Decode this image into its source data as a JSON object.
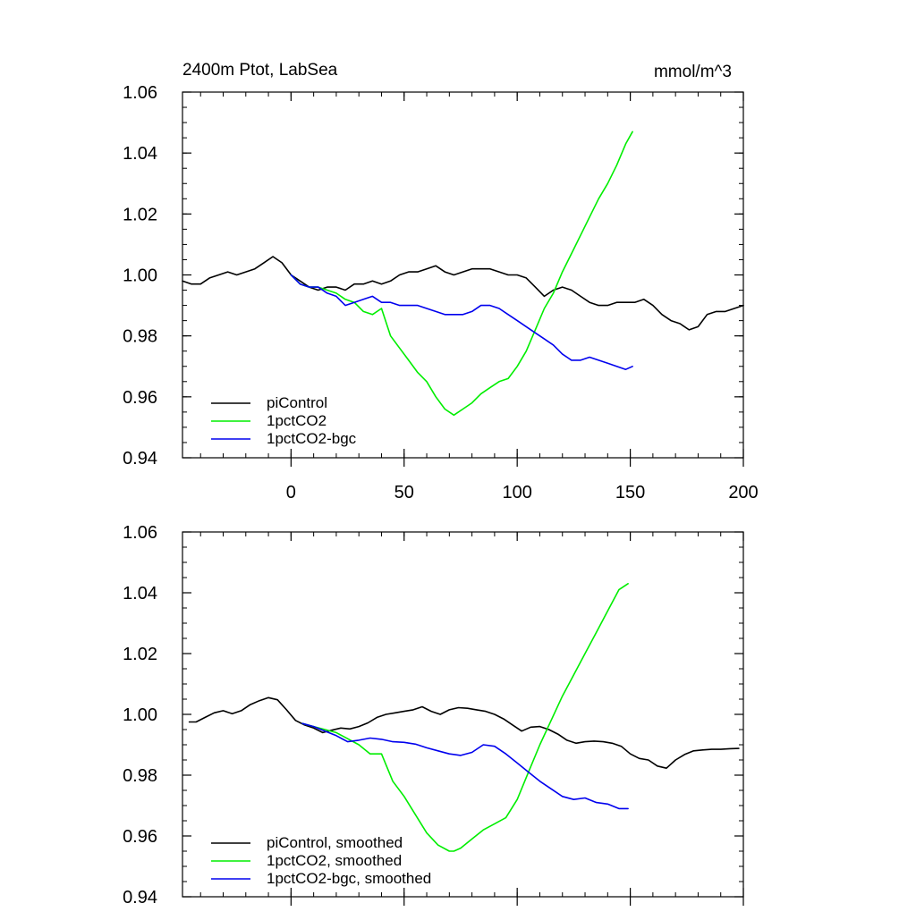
{
  "header": {
    "title": "2400m Ptot, LabSea",
    "units": "mmol/m^3"
  },
  "colors": {
    "piControl": "#000000",
    "1pctCO2": "#00ee00",
    "1pctCO2-bgc": "#0000ee"
  },
  "chart_data": [
    {
      "type": "line",
      "title": "2400m Ptot, LabSea",
      "units": "mmol/m^3",
      "xlim": [
        -48,
        200
      ],
      "ylim": [
        0.94,
        1.06
      ],
      "xticks": [
        0,
        50,
        100,
        150,
        200
      ],
      "xtick_labels": [
        "0",
        "50",
        "100",
        "150",
        "200"
      ],
      "yticks": [
        0.94,
        0.96,
        0.98,
        1.0,
        1.02,
        1.04,
        1.06
      ],
      "ytick_labels": [
        "0.94",
        "0.96",
        "0.98",
        "1.00",
        "1.02",
        "1.04",
        "1.06"
      ],
      "legend_position": "bottom-left",
      "grid": false,
      "series": [
        {
          "name": "piControl",
          "color": "#000000",
          "x": [
            -48,
            -44,
            -40,
            -36,
            -32,
            -28,
            -24,
            -20,
            -16,
            -12,
            -8,
            -4,
            0,
            4,
            8,
            12,
            16,
            20,
            24,
            28,
            32,
            36,
            40,
            44,
            48,
            52,
            56,
            60,
            64,
            68,
            72,
            76,
            80,
            84,
            88,
            92,
            96,
            100,
            104,
            108,
            112,
            116,
            120,
            124,
            128,
            132,
            136,
            140,
            144,
            148,
            152,
            156,
            160,
            164,
            168,
            172,
            176,
            180,
            184,
            188,
            192,
            196,
            200
          ],
          "y": [
            0.998,
            0.997,
            0.997,
            0.999,
            1.0,
            1.001,
            1.0,
            1.001,
            1.002,
            1.004,
            1.006,
            1.004,
            1.0,
            0.998,
            0.996,
            0.995,
            0.996,
            0.996,
            0.995,
            0.997,
            0.997,
            0.998,
            0.997,
            0.998,
            1.0,
            1.001,
            1.001,
            1.002,
            1.003,
            1.001,
            1.0,
            1.001,
            1.002,
            1.002,
            1.002,
            1.001,
            1.0,
            1.0,
            0.999,
            0.996,
            0.993,
            0.995,
            0.996,
            0.995,
            0.993,
            0.991,
            0.99,
            0.99,
            0.991,
            0.991,
            0.991,
            0.992,
            0.99,
            0.987,
            0.985,
            0.984,
            0.982,
            0.983,
            0.987,
            0.988,
            0.988,
            0.989,
            0.99
          ]
        },
        {
          "name": "1pctCO2",
          "color": "#00ee00",
          "x": [
            0,
            4,
            8,
            12,
            16,
            20,
            24,
            28,
            32,
            36,
            40,
            44,
            48,
            52,
            56,
            60,
            64,
            68,
            72,
            76,
            80,
            84,
            88,
            92,
            96,
            100,
            104,
            108,
            112,
            116,
            120,
            124,
            128,
            132,
            136,
            140,
            144,
            148,
            151
          ],
          "y": [
            1.0,
            0.997,
            0.996,
            0.996,
            0.995,
            0.994,
            0.992,
            0.991,
            0.988,
            0.987,
            0.989,
            0.98,
            0.976,
            0.972,
            0.968,
            0.965,
            0.96,
            0.956,
            0.954,
            0.956,
            0.958,
            0.961,
            0.963,
            0.965,
            0.966,
            0.97,
            0.975,
            0.982,
            0.989,
            0.994,
            1.001,
            1.007,
            1.013,
            1.019,
            1.025,
            1.03,
            1.036,
            1.043,
            1.047
          ]
        },
        {
          "name": "1pctCO2-bgc",
          "color": "#0000ee",
          "x": [
            0,
            4,
            8,
            12,
            16,
            20,
            24,
            28,
            32,
            36,
            40,
            44,
            48,
            52,
            56,
            60,
            64,
            68,
            72,
            76,
            80,
            84,
            88,
            92,
            96,
            100,
            104,
            108,
            112,
            116,
            120,
            124,
            128,
            132,
            136,
            140,
            144,
            148,
            151
          ],
          "y": [
            1.0,
            0.997,
            0.996,
            0.996,
            0.994,
            0.993,
            0.99,
            0.991,
            0.992,
            0.993,
            0.991,
            0.991,
            0.99,
            0.99,
            0.99,
            0.989,
            0.988,
            0.987,
            0.987,
            0.987,
            0.988,
            0.99,
            0.99,
            0.989,
            0.987,
            0.985,
            0.983,
            0.981,
            0.979,
            0.977,
            0.974,
            0.972,
            0.972,
            0.973,
            0.972,
            0.971,
            0.97,
            0.969,
            0.97
          ]
        }
      ]
    },
    {
      "type": "line",
      "xlim": [
        -48,
        200
      ],
      "ylim": [
        0.94,
        1.06
      ],
      "xticks": [
        0,
        50,
        100,
        150,
        200
      ],
      "xtick_labels": [],
      "yticks": [
        0.94,
        0.96,
        0.98,
        1.0,
        1.02,
        1.04,
        1.06
      ],
      "ytick_labels": [
        "0.94",
        "0.96",
        "0.98",
        "1.00",
        "1.02",
        "1.04",
        "1.06"
      ],
      "legend_position": "bottom-left",
      "grid": false,
      "series": [
        {
          "name": "piControl, smoothed",
          "color": "#000000",
          "x": [
            -45,
            -42,
            -38,
            -34,
            -30,
            -26,
            -22,
            -18,
            -14,
            -10,
            -6,
            -2,
            2,
            6,
            10,
            14,
            18,
            22,
            26,
            30,
            34,
            38,
            42,
            46,
            50,
            54,
            58,
            62,
            66,
            70,
            74,
            78,
            82,
            86,
            90,
            94,
            98,
            102,
            106,
            110,
            114,
            118,
            122,
            126,
            130,
            134,
            138,
            142,
            146,
            150,
            154,
            158,
            162,
            166,
            170,
            174,
            178,
            182,
            186,
            190,
            194,
            198
          ],
          "y": [
            0.9975,
            0.9975,
            0.999,
            1.0005,
            1.0012,
            1.0002,
            1.0012,
            1.0032,
            1.0045,
            1.0055,
            1.0048,
            1.0015,
            0.998,
            0.9965,
            0.9955,
            0.994,
            0.9948,
            0.9955,
            0.9952,
            0.996,
            0.9972,
            0.999,
            1.0,
            1.0005,
            1.001,
            1.0015,
            1.0025,
            1.001,
            1.0,
            1.0015,
            1.0022,
            1.002,
            1.0015,
            1.001,
            1.0,
            0.9985,
            0.9965,
            0.9945,
            0.9958,
            0.996,
            0.995,
            0.9935,
            0.9915,
            0.9905,
            0.991,
            0.9912,
            0.991,
            0.9905,
            0.9895,
            0.987,
            0.9855,
            0.985,
            0.983,
            0.9823,
            0.985,
            0.9868,
            0.988,
            0.9883,
            0.9885,
            0.9885,
            0.9887,
            0.9888
          ]
        },
        {
          "name": "1pctCO2, smoothed",
          "color": "#00ee00",
          "x": [
            5,
            10,
            15,
            20,
            25,
            30,
            35,
            40,
            45,
            50,
            55,
            60,
            65,
            70,
            72,
            75,
            80,
            85,
            90,
            95,
            100,
            105,
            110,
            115,
            120,
            125,
            130,
            135,
            140,
            145,
            149
          ],
          "y": [
            0.997,
            0.996,
            0.995,
            0.994,
            0.992,
            0.99,
            0.987,
            0.987,
            0.978,
            0.973,
            0.967,
            0.961,
            0.957,
            0.955,
            0.955,
            0.956,
            0.959,
            0.962,
            0.964,
            0.966,
            0.972,
            0.981,
            0.99,
            0.998,
            1.006,
            1.013,
            1.02,
            1.027,
            1.034,
            1.041,
            1.043
          ]
        },
        {
          "name": "1pctCO2-bgc, smoothed",
          "color": "#0000ee",
          "x": [
            5,
            10,
            15,
            20,
            25,
            30,
            35,
            40,
            45,
            50,
            55,
            60,
            65,
            70,
            75,
            80,
            85,
            90,
            95,
            100,
            105,
            110,
            115,
            120,
            125,
            130,
            135,
            140,
            145,
            149
          ],
          "y": [
            0.997,
            0.996,
            0.9945,
            0.993,
            0.991,
            0.9915,
            0.9922,
            0.9918,
            0.991,
            0.9908,
            0.9902,
            0.989,
            0.988,
            0.987,
            0.9865,
            0.9875,
            0.99,
            0.9895,
            0.987,
            0.984,
            0.981,
            0.978,
            0.9755,
            0.973,
            0.972,
            0.9725,
            0.971,
            0.9705,
            0.969,
            0.969
          ]
        }
      ]
    }
  ]
}
